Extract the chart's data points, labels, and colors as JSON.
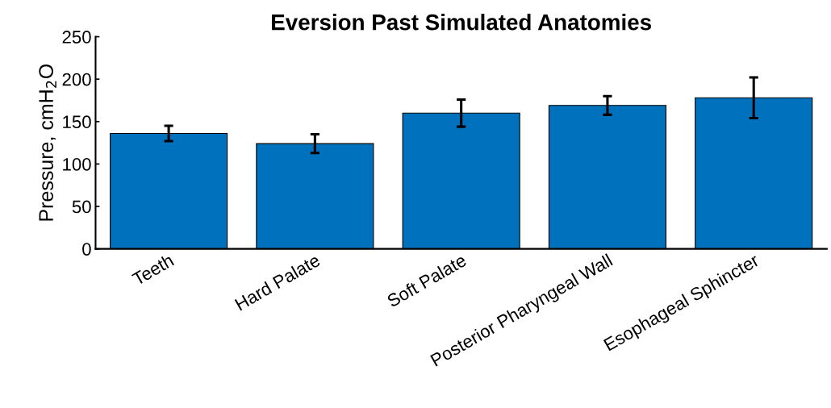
{
  "chart_data": {
    "type": "bar",
    "title": "Eversion Past Simulated Anatomies",
    "ylabel": "Pressure, cmH$_{2}$O",
    "categories": [
      "Teeth",
      "Hard Palate",
      "Soft Palate",
      "Posterior Pharyngeal Wall",
      "Esophageal Sphincter"
    ],
    "values": [
      136,
      124,
      160,
      169,
      178
    ],
    "errors": [
      9,
      11,
      16,
      11,
      24
    ],
    "color": "#0072bd",
    "ylim": [
      0,
      250
    ],
    "yticks": [
      0,
      50,
      100,
      150,
      200,
      250
    ],
    "grid": false,
    "legend": false
  }
}
